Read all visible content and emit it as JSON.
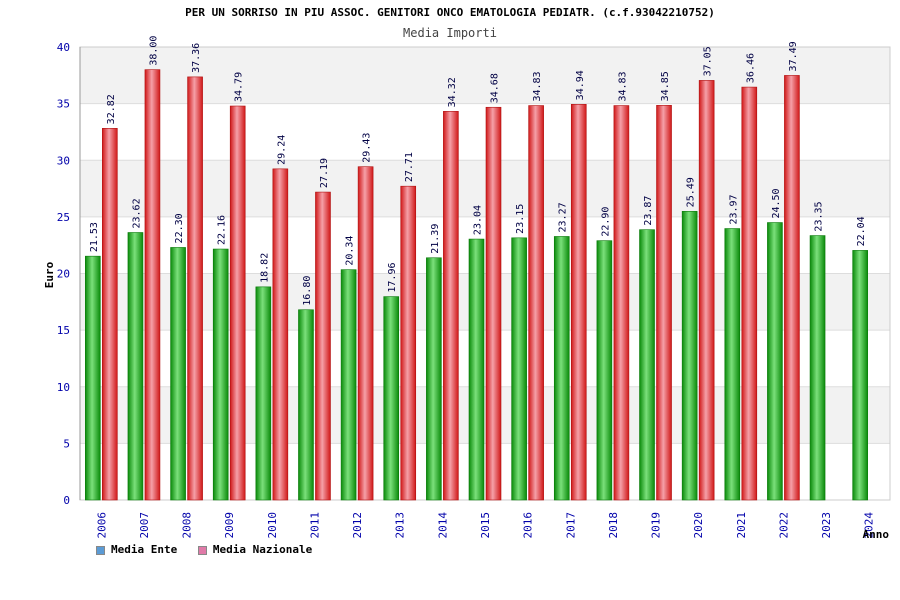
{
  "chart_data": {
    "type": "bar",
    "title": "PER UN SORRISO IN PIU ASSOC. GENITORI ONCO EMATOLOGIA PEDIATR. (c.f.93042210752)",
    "subtitle": "Media Importi",
    "xlabel": "Anno",
    "ylabel": "Euro",
    "ylim": [
      0,
      40
    ],
    "yticks": [
      0,
      5,
      10,
      15,
      20,
      25,
      30,
      35,
      40
    ],
    "categories": [
      "2006",
      "2007",
      "2008",
      "2009",
      "2010",
      "2011",
      "2012",
      "2013",
      "2014",
      "2015",
      "2016",
      "2017",
      "2018",
      "2019",
      "2020",
      "2021",
      "2022",
      "2023",
      "2024"
    ],
    "series": [
      {
        "name": "Media Ente",
        "color": "#10b010",
        "legend_color": "#5b9bd5",
        "values": [
          21.53,
          23.62,
          22.3,
          22.16,
          18.82,
          16.8,
          20.34,
          17.96,
          21.39,
          23.04,
          23.15,
          23.27,
          22.9,
          23.87,
          25.49,
          23.97,
          24.5,
          23.35,
          22.04
        ],
        "labels": [
          "21.53",
          "23.62",
          "22.30",
          "22.16",
          "18.82",
          "16.80",
          "20.34",
          "17.96",
          "21.39",
          "23.04",
          "23.15",
          "23.27",
          "22.90",
          "23.87",
          "25.49",
          "23.97",
          "24.50",
          "23.35",
          "22.04"
        ]
      },
      {
        "name": "Media Nazionale",
        "color": "#e82020",
        "legend_color": "#e07aa8",
        "values": [
          32.82,
          38.0,
          37.36,
          34.79,
          29.24,
          27.19,
          29.43,
          27.71,
          34.32,
          34.68,
          34.83,
          34.94,
          34.83,
          34.85,
          37.05,
          36.46,
          37.49,
          null,
          null
        ],
        "labels": [
          "32.82",
          "38.00",
          "37.36",
          "34.79",
          "29.24",
          "27.19",
          "29.43",
          "27.71",
          "34.32",
          "34.68",
          "34.83",
          "34.94",
          "34.83",
          "34.85",
          "37.05",
          "36.46",
          "37.49",
          null,
          null
        ]
      }
    ],
    "legend_position": "bottom-left",
    "grid": true
  }
}
